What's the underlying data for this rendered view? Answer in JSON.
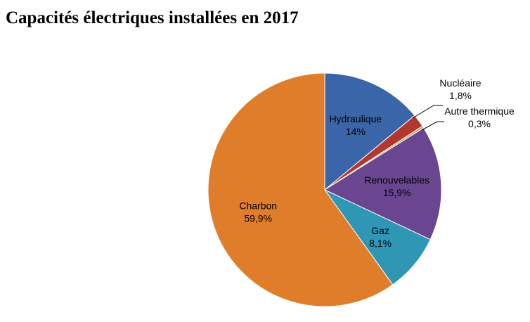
{
  "chart_data": {
    "type": "pie",
    "title": "Capacités électriques installées en 2017",
    "start_angle_deg": 0,
    "direction": "clockwise",
    "slices": [
      {
        "name": "Hydraulique",
        "value": 14,
        "value_label": "14%",
        "color": "#3a65a8",
        "label_position": "inside"
      },
      {
        "name": "Nucléaire",
        "value": 1.8,
        "value_label": "1,8%",
        "color": "#b2382f",
        "label_position": "outside"
      },
      {
        "name": "Autre thermique",
        "value": 0.3,
        "value_label": "0,3%",
        "color": "#b8a65e",
        "label_position": "outside"
      },
      {
        "name": "Renouvelables",
        "value": 15.9,
        "value_label": "15,9%",
        "color": "#6a4691",
        "label_position": "inside"
      },
      {
        "name": "Gaz",
        "value": 8.1,
        "value_label": "8,1%",
        "color": "#2f96b4",
        "label_position": "inside"
      },
      {
        "name": "Charbon",
        "value": 59.9,
        "value_label": "59,9%",
        "color": "#e07d2a",
        "label_position": "inside"
      }
    ]
  }
}
